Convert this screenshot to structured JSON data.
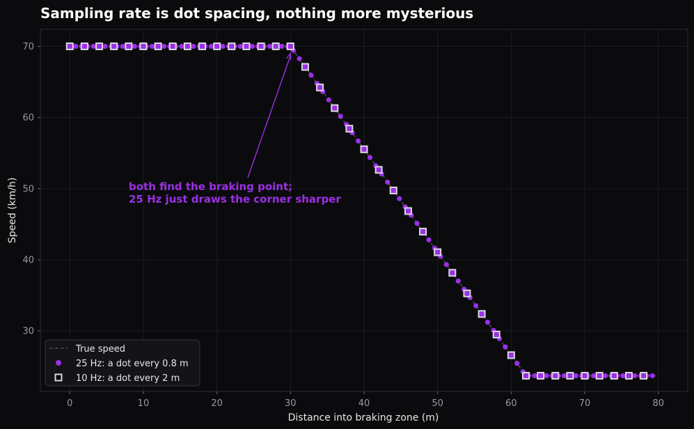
{
  "chart_data": {
    "type": "scatter",
    "title": "Sampling rate is dot spacing, nothing more mysterious",
    "xlabel": "Distance into braking zone (m)",
    "ylabel": "Speed (km/h)",
    "xlim": [
      -4,
      84
    ],
    "ylim": [
      21.5,
      72.4
    ],
    "xticks": [
      0,
      10,
      20,
      30,
      40,
      50,
      60,
      70,
      80
    ],
    "yticks": [
      30,
      40,
      50,
      60,
      70
    ],
    "grid": true,
    "legend_position": "lower-left",
    "true_speed": {
      "name": "True speed",
      "x": [
        0,
        30,
        62,
        80
      ],
      "y": [
        70,
        70,
        23.7,
        23.7
      ],
      "style": "dashed",
      "color": "#4a4a55"
    },
    "series": [
      {
        "name": "25 Hz: a dot every 0.8 m",
        "marker": "circle",
        "color": "#9b30e6",
        "x_start": 0,
        "x_step": 0.8,
        "count": 100
      },
      {
        "name": "10 Hz: a dot every 2 m",
        "marker": "square",
        "color": "#d8d8de",
        "fill": "#9b30e6",
        "x_start": 0,
        "x_step": 2,
        "count": 40
      }
    ],
    "annotation": {
      "lines": [
        "both find the braking point;",
        "25 Hz just draws the corner sharper"
      ],
      "color": "#9b30e6",
      "arrow_to": [
        30,
        69
      ]
    }
  }
}
